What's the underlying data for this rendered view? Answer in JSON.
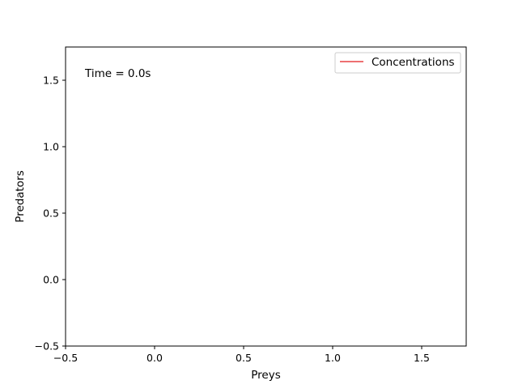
{
  "chart_data": {
    "type": "line",
    "title": "",
    "xlabel": "Preys",
    "ylabel": "Predators",
    "xlim": [
      -0.5,
      1.75
    ],
    "ylim": [
      -0.5,
      1.75
    ],
    "x_ticks": [
      -0.5,
      0.0,
      0.5,
      1.0,
      1.5
    ],
    "y_ticks": [
      -0.5,
      0.0,
      0.5,
      1.0,
      1.5
    ],
    "x_tick_labels": [
      "−0.5",
      "0.0",
      "0.5",
      "1.0",
      "1.5"
    ],
    "y_tick_labels": [
      "−0.5",
      "0.0",
      "0.5",
      "1.0",
      "1.5"
    ],
    "grid": false,
    "legend_position": "top-right",
    "series": [
      {
        "name": "Concentrations",
        "color": "#e31a1c",
        "x": [],
        "y": []
      }
    ],
    "annotation": {
      "text": "Time = 0.0s"
    }
  }
}
